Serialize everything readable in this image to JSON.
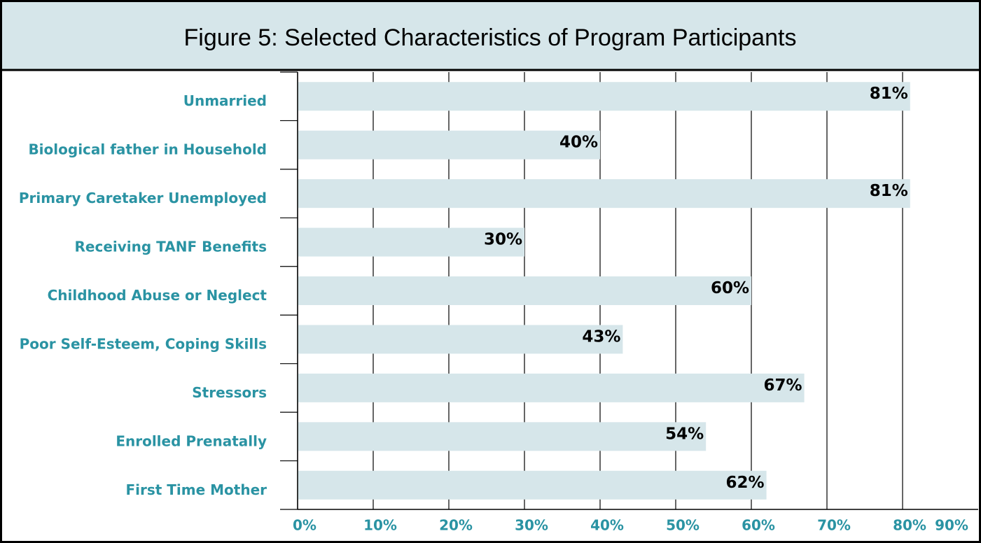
{
  "chart_data": {
    "type": "bar",
    "orientation": "horizontal",
    "title": "Figure 5: Selected Characteristics of Program Participants",
    "categories": [
      "Unmarried",
      "Biological father in Household",
      "Primary Caretaker Unemployed",
      "Receiving TANF Benefits",
      "Childhood Abuse or Neglect",
      "Poor Self-Esteem, Coping Skills",
      "Stressors",
      "Enrolled Prenatally",
      "First Time Mother"
    ],
    "values": [
      81,
      40,
      81,
      30,
      60,
      43,
      67,
      54,
      62
    ],
    "value_labels": [
      "81%",
      "40%",
      "81%",
      "30%",
      "60%",
      "43%",
      "67%",
      "54%",
      "62%"
    ],
    "color": "#d6e6ea",
    "xlim": [
      0,
      90
    ],
    "xticks": [
      {
        "value": 0,
        "label": "0%"
      },
      {
        "value": 10,
        "label": "10%"
      },
      {
        "value": 20,
        "label": "20%"
      },
      {
        "value": 30,
        "label": "30%"
      },
      {
        "value": 40,
        "label": "40%"
      },
      {
        "value": 50,
        "label": "50%"
      },
      {
        "value": 60,
        "label": "60%"
      },
      {
        "value": 70,
        "label": "70%"
      },
      {
        "value": 80,
        "label": "80%"
      },
      {
        "value": 90,
        "label": "90%"
      }
    ],
    "grid": true
  }
}
